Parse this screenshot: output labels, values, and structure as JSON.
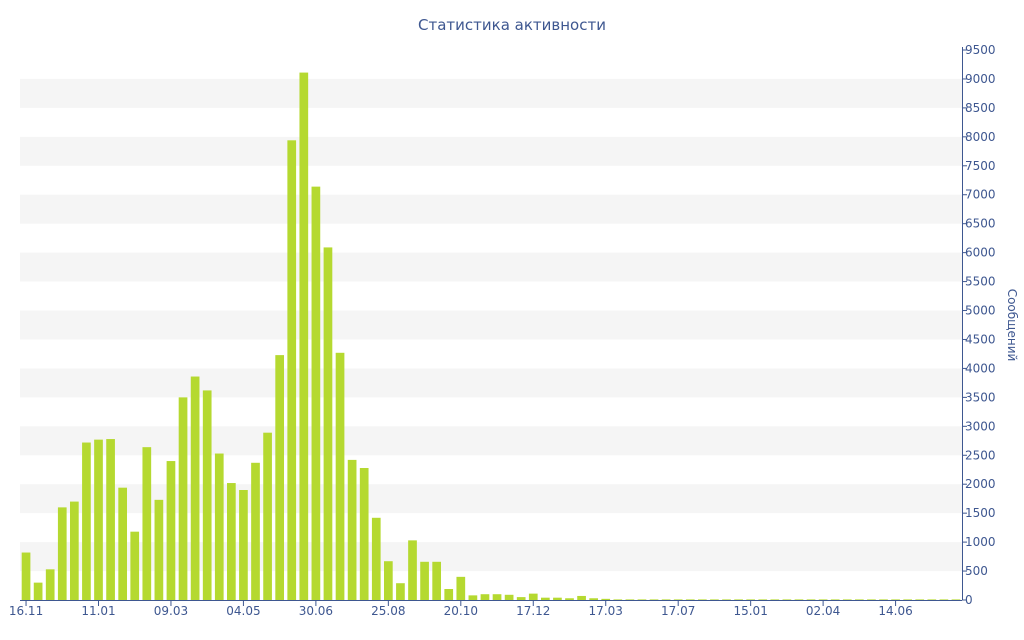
{
  "chart_data": {
    "type": "bar",
    "title": "Статистика активности",
    "xlabel": "",
    "ylabel": "Сообщений",
    "ylim": [
      0,
      9500
    ],
    "yticks": [
      0,
      500,
      1000,
      1500,
      2000,
      2500,
      3000,
      3500,
      4000,
      4500,
      5000,
      5500,
      6000,
      6500,
      7000,
      7500,
      8000,
      8500,
      9000,
      9500
    ],
    "y_axis_side": "right",
    "grid": "alternating horizontal bands",
    "x_tick_labels": [
      {
        "index": 0,
        "label": "16.11"
      },
      {
        "index": 6,
        "label": "11.01"
      },
      {
        "index": 12,
        "label": "09.03"
      },
      {
        "index": 18,
        "label": "04.05"
      },
      {
        "index": 24,
        "label": "30.06"
      },
      {
        "index": 30,
        "label": "25.08"
      },
      {
        "index": 36,
        "label": "20.10"
      },
      {
        "index": 42,
        "label": "17.12"
      },
      {
        "index": 48,
        "label": "17.03"
      },
      {
        "index": 54,
        "label": "17.07"
      },
      {
        "index": 60,
        "label": "15.01"
      },
      {
        "index": 66,
        "label": "02.04"
      },
      {
        "index": 72,
        "label": "14.06"
      }
    ],
    "values": [
      820,
      300,
      530,
      1600,
      1700,
      2720,
      2770,
      2780,
      1940,
      1180,
      2640,
      1730,
      2400,
      3500,
      3860,
      3620,
      2530,
      2020,
      1900,
      2370,
      2890,
      4230,
      7940,
      9110,
      7140,
      6090,
      4270,
      2420,
      2280,
      1420,
      670,
      290,
      1030,
      660,
      660,
      190,
      400,
      80,
      100,
      100,
      90,
      50,
      110,
      40,
      40,
      30,
      70,
      30,
      20,
      10,
      10,
      10,
      10,
      10,
      10,
      10,
      10,
      10,
      10,
      10,
      10,
      10,
      10,
      10,
      10,
      10,
      10,
      10,
      10,
      10,
      10,
      10,
      10,
      10,
      10,
      10,
      10,
      10
    ],
    "bar_color": "#b5d930"
  },
  "colors": {
    "bar": "#b5d930",
    "text": "#3e5790",
    "band": "#f5f5f5",
    "axis": "#3e5790"
  }
}
